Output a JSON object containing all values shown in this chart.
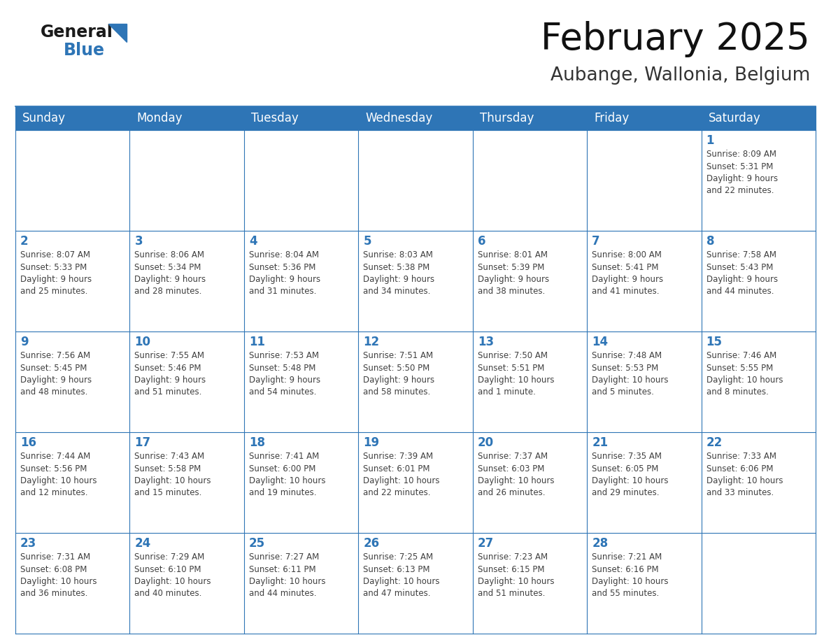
{
  "title": "February 2025",
  "subtitle": "Aubange, Wallonia, Belgium",
  "header_color": "#2e75b6",
  "header_text_color": "#ffffff",
  "cell_bg_color": "#ffffff",
  "border_color": "#2e75b6",
  "text_color": "#404040",
  "day_num_color": "#2e75b6",
  "days_of_week": [
    "Sunday",
    "Monday",
    "Tuesday",
    "Wednesday",
    "Thursday",
    "Friday",
    "Saturday"
  ],
  "weeks": [
    [
      {
        "day": "",
        "info": ""
      },
      {
        "day": "",
        "info": ""
      },
      {
        "day": "",
        "info": ""
      },
      {
        "day": "",
        "info": ""
      },
      {
        "day": "",
        "info": ""
      },
      {
        "day": "",
        "info": ""
      },
      {
        "day": "1",
        "info": "Sunrise: 8:09 AM\nSunset: 5:31 PM\nDaylight: 9 hours\nand 22 minutes."
      }
    ],
    [
      {
        "day": "2",
        "info": "Sunrise: 8:07 AM\nSunset: 5:33 PM\nDaylight: 9 hours\nand 25 minutes."
      },
      {
        "day": "3",
        "info": "Sunrise: 8:06 AM\nSunset: 5:34 PM\nDaylight: 9 hours\nand 28 minutes."
      },
      {
        "day": "4",
        "info": "Sunrise: 8:04 AM\nSunset: 5:36 PM\nDaylight: 9 hours\nand 31 minutes."
      },
      {
        "day": "5",
        "info": "Sunrise: 8:03 AM\nSunset: 5:38 PM\nDaylight: 9 hours\nand 34 minutes."
      },
      {
        "day": "6",
        "info": "Sunrise: 8:01 AM\nSunset: 5:39 PM\nDaylight: 9 hours\nand 38 minutes."
      },
      {
        "day": "7",
        "info": "Sunrise: 8:00 AM\nSunset: 5:41 PM\nDaylight: 9 hours\nand 41 minutes."
      },
      {
        "day": "8",
        "info": "Sunrise: 7:58 AM\nSunset: 5:43 PM\nDaylight: 9 hours\nand 44 minutes."
      }
    ],
    [
      {
        "day": "9",
        "info": "Sunrise: 7:56 AM\nSunset: 5:45 PM\nDaylight: 9 hours\nand 48 minutes."
      },
      {
        "day": "10",
        "info": "Sunrise: 7:55 AM\nSunset: 5:46 PM\nDaylight: 9 hours\nand 51 minutes."
      },
      {
        "day": "11",
        "info": "Sunrise: 7:53 AM\nSunset: 5:48 PM\nDaylight: 9 hours\nand 54 minutes."
      },
      {
        "day": "12",
        "info": "Sunrise: 7:51 AM\nSunset: 5:50 PM\nDaylight: 9 hours\nand 58 minutes."
      },
      {
        "day": "13",
        "info": "Sunrise: 7:50 AM\nSunset: 5:51 PM\nDaylight: 10 hours\nand 1 minute."
      },
      {
        "day": "14",
        "info": "Sunrise: 7:48 AM\nSunset: 5:53 PM\nDaylight: 10 hours\nand 5 minutes."
      },
      {
        "day": "15",
        "info": "Sunrise: 7:46 AM\nSunset: 5:55 PM\nDaylight: 10 hours\nand 8 minutes."
      }
    ],
    [
      {
        "day": "16",
        "info": "Sunrise: 7:44 AM\nSunset: 5:56 PM\nDaylight: 10 hours\nand 12 minutes."
      },
      {
        "day": "17",
        "info": "Sunrise: 7:43 AM\nSunset: 5:58 PM\nDaylight: 10 hours\nand 15 minutes."
      },
      {
        "day": "18",
        "info": "Sunrise: 7:41 AM\nSunset: 6:00 PM\nDaylight: 10 hours\nand 19 minutes."
      },
      {
        "day": "19",
        "info": "Sunrise: 7:39 AM\nSunset: 6:01 PM\nDaylight: 10 hours\nand 22 minutes."
      },
      {
        "day": "20",
        "info": "Sunrise: 7:37 AM\nSunset: 6:03 PM\nDaylight: 10 hours\nand 26 minutes."
      },
      {
        "day": "21",
        "info": "Sunrise: 7:35 AM\nSunset: 6:05 PM\nDaylight: 10 hours\nand 29 minutes."
      },
      {
        "day": "22",
        "info": "Sunrise: 7:33 AM\nSunset: 6:06 PM\nDaylight: 10 hours\nand 33 minutes."
      }
    ],
    [
      {
        "day": "23",
        "info": "Sunrise: 7:31 AM\nSunset: 6:08 PM\nDaylight: 10 hours\nand 36 minutes."
      },
      {
        "day": "24",
        "info": "Sunrise: 7:29 AM\nSunset: 6:10 PM\nDaylight: 10 hours\nand 40 minutes."
      },
      {
        "day": "25",
        "info": "Sunrise: 7:27 AM\nSunset: 6:11 PM\nDaylight: 10 hours\nand 44 minutes."
      },
      {
        "day": "26",
        "info": "Sunrise: 7:25 AM\nSunset: 6:13 PM\nDaylight: 10 hours\nand 47 minutes."
      },
      {
        "day": "27",
        "info": "Sunrise: 7:23 AM\nSunset: 6:15 PM\nDaylight: 10 hours\nand 51 minutes."
      },
      {
        "day": "28",
        "info": "Sunrise: 7:21 AM\nSunset: 6:16 PM\nDaylight: 10 hours\nand 55 minutes."
      },
      {
        "day": "",
        "info": ""
      }
    ]
  ],
  "title_fontsize": 38,
  "subtitle_fontsize": 19,
  "header_fontsize": 12,
  "day_num_fontsize": 12,
  "cell_text_fontsize": 8.5,
  "logo_general_fontsize": 17,
  "logo_blue_fontsize": 17
}
